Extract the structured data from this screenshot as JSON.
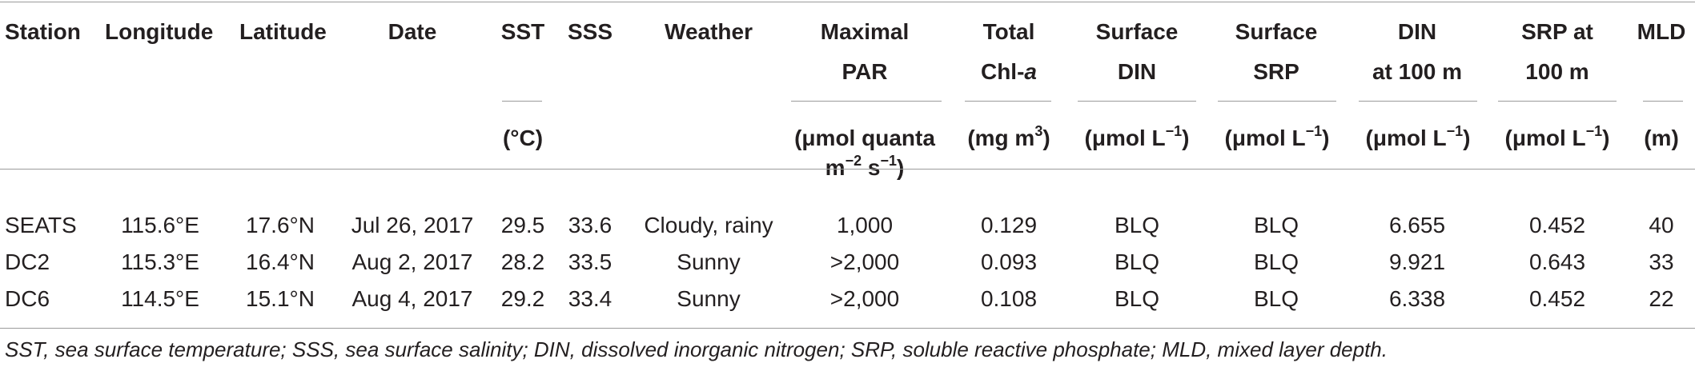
{
  "table": {
    "headers": [
      {
        "lines": [
          "Station"
        ],
        "unit": ""
      },
      {
        "lines": [
          "Longitude"
        ],
        "unit": ""
      },
      {
        "lines": [
          "Latitude"
        ],
        "unit": ""
      },
      {
        "lines": [
          "Date"
        ],
        "unit": ""
      },
      {
        "lines": [
          "SST"
        ],
        "unit": "(°C)"
      },
      {
        "lines": [
          "SSS"
        ],
        "unit": ""
      },
      {
        "lines": [
          "Weather"
        ],
        "unit": ""
      },
      {
        "lines": [
          "Maximal",
          "PAR"
        ],
        "unit": "(μmol quanta",
        "unit2": "m",
        "unit2_sup": "−2",
        "unit2_mid": " s",
        "unit2_sup2": "−1",
        "unit2_end": ")"
      },
      {
        "lines": [
          "Total",
          "Chl-"
        ],
        "italic_suffix": "a",
        "unit": "(mg m",
        "unit_sup": "3",
        "unit_end": ")"
      },
      {
        "lines": [
          "Surface",
          "DIN"
        ],
        "unit": "(μmol L",
        "unit_sup": "−1",
        "unit_end": ")"
      },
      {
        "lines": [
          "Surface",
          "SRP"
        ],
        "unit": "(μmol L",
        "unit_sup": "−1",
        "unit_end": ")"
      },
      {
        "lines": [
          "DIN",
          "at 100 m"
        ],
        "unit": "(μmol L",
        "unit_sup": "−1",
        "unit_end": ")"
      },
      {
        "lines": [
          "SRP at",
          "100 m"
        ],
        "unit": "(μmol L",
        "unit_sup": "−1",
        "unit_end": ")"
      },
      {
        "lines": [
          "MLD"
        ],
        "unit": "(m)"
      }
    ],
    "rows": [
      [
        "SEATS",
        "115.6°E",
        "17.6°N",
        "Jul 26, 2017",
        "29.5",
        "33.6",
        "Cloudy, rainy",
        "1,000",
        "0.129",
        "BLQ",
        "BLQ",
        "6.655",
        "0.452",
        "40"
      ],
      [
        "DC2",
        "115.3°E",
        "16.4°N",
        "Aug 2, 2017",
        "28.2",
        "33.5",
        "Sunny",
        ">2,000",
        "0.093",
        "BLQ",
        "BLQ",
        "9.921",
        "0.643",
        "33"
      ],
      [
        "DC6",
        "114.5°E",
        "15.1°N",
        "Aug 4, 2017",
        "29.2",
        "33.4",
        "Sunny",
        ">2,000",
        "0.108",
        "BLQ",
        "BLQ",
        "6.338",
        "0.452",
        "22"
      ]
    ],
    "footnote": "SST, sea surface temperature; SSS, sea surface salinity; DIN, dissolved inorganic nitrogen; SRP, soluble reactive phosphate; MLD, mixed layer depth."
  }
}
